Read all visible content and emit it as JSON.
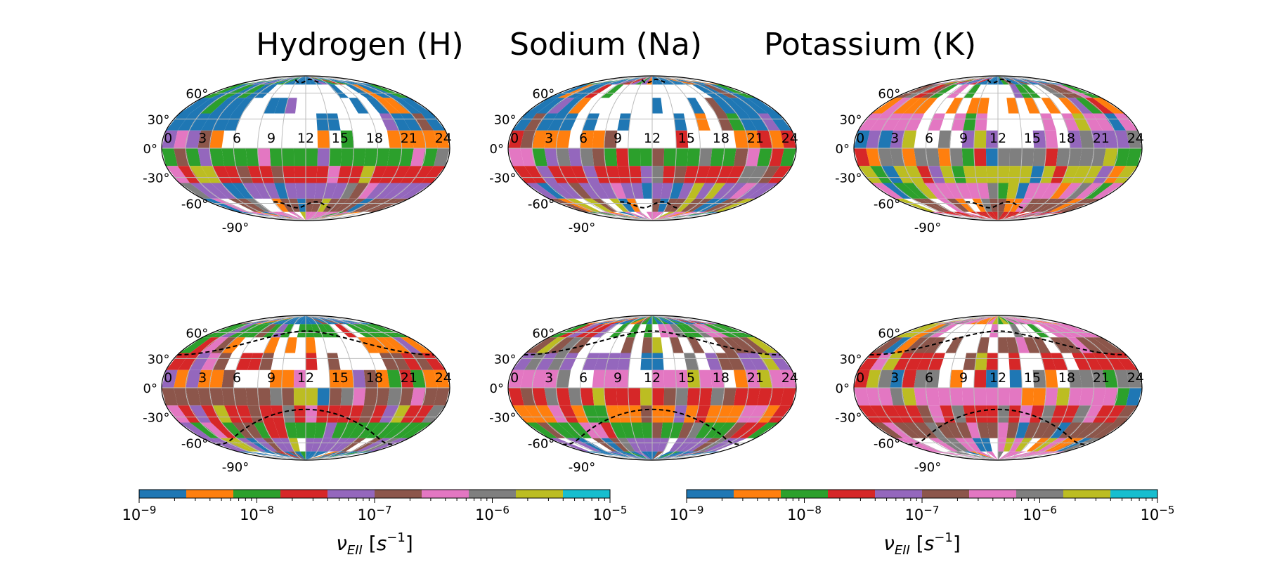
{
  "titles": [
    "Hydrogen (H)",
    "Sodium (Na)",
    "Potassium (K)"
  ],
  "chart_data": [
    {
      "type": "heatmap",
      "title": "Hydrogen (H)",
      "projection": "mollweide",
      "x_tick_labels": [
        "0",
        "3",
        "6",
        "9",
        "12",
        "15",
        "18",
        "21",
        "24"
      ],
      "y_tick_labels": [
        "60°",
        "30°",
        "0°",
        "-30°",
        "-60°",
        "-90°"
      ],
      "boundary_lines": "dashed black, near poles",
      "seed": 11,
      "fill": 0.42,
      "band": [
        0,
        0,
        0,
        0,
        1,
        2,
        3,
        4,
        5,
        6
      ]
    },
    {
      "type": "heatmap",
      "title": "Sodium (Na)",
      "projection": "mollweide",
      "x_tick_labels": [
        "0",
        "3",
        "6",
        "9",
        "12",
        "15",
        "18",
        "21",
        "24"
      ],
      "y_tick_labels": [
        "60°",
        "30°",
        "0°",
        "-30°",
        "-60°",
        "-90°"
      ],
      "boundary_lines": "dashed black, near poles",
      "seed": 23,
      "fill": 0.4,
      "band": [
        0,
        0,
        0,
        0,
        1,
        2,
        3,
        4,
        5,
        6
      ]
    },
    {
      "type": "heatmap",
      "title": "Potassium (K)",
      "projection": "mollweide",
      "x_tick_labels": [
        "0",
        "3",
        "6",
        "9",
        "12",
        "15",
        "18",
        "21",
        "24"
      ],
      "y_tick_labels": [
        "60°",
        "30°",
        "0°",
        "-30°",
        "-60°",
        "-90°"
      ],
      "boundary_lines": "dashed black, near poles",
      "seed": 37,
      "fill": 0.38,
      "band": [
        0,
        2,
        1,
        6,
        4,
        7,
        8,
        6,
        5,
        3
      ]
    },
    {
      "type": "heatmap",
      "projection": "mollweide",
      "x_tick_labels": [
        "0",
        "3",
        "6",
        "9",
        "12",
        "15",
        "18",
        "21",
        "24"
      ],
      "y_tick_labels": [
        "60°",
        "30°",
        "0°",
        "-30°",
        "-60°",
        "-90°"
      ],
      "boundary_lines": "dashed black, sinuous at ~±45°",
      "seed": 41,
      "fill": 0.3,
      "band": [
        0,
        2,
        1,
        3,
        1,
        5,
        3,
        2,
        4,
        0
      ]
    },
    {
      "type": "heatmap",
      "projection": "mollweide",
      "x_tick_labels": [
        "0",
        "3",
        "6",
        "9",
        "12",
        "15",
        "18",
        "21",
        "24"
      ],
      "y_tick_labels": [
        "60°",
        "30°",
        "0°",
        "-30°",
        "-60°",
        "-90°"
      ],
      "boundary_lines": "dashed black, sinuous at ~±45°",
      "seed": 53,
      "fill": 0.28,
      "band": [
        0,
        2,
        5,
        4,
        6,
        3,
        1,
        2,
        4,
        0
      ]
    },
    {
      "type": "heatmap",
      "projection": "mollweide",
      "x_tick_labels": [
        "0",
        "3",
        "6",
        "9",
        "12",
        "15",
        "18",
        "21",
        "24"
      ],
      "y_tick_labels": [
        "60°",
        "30°",
        "0°",
        "-30°",
        "-60°",
        "-90°"
      ],
      "boundary_lines": "dashed black, sinuous at ~±45°",
      "seed": 67,
      "fill": 0.25,
      "band": [
        6,
        6,
        5,
        3,
        7,
        6,
        3,
        5,
        6,
        6
      ]
    }
  ],
  "colorbars": [
    {
      "ticks": [
        "10",
        "10",
        "10",
        "10",
        "10"
      ],
      "exps": [
        "−9",
        "−8",
        "−7",
        "−6",
        "−5"
      ],
      "label": "ν",
      "label_sub": "EII",
      "label_unit_open": " [",
      "label_s": "s",
      "label_s_exp": "−1",
      "label_unit_close": "]"
    },
    {
      "ticks": [
        "10",
        "10",
        "10",
        "10",
        "10"
      ],
      "exps": [
        "−9",
        "−8",
        "−7",
        "−6",
        "−5"
      ],
      "label": "ν",
      "label_sub": "EII",
      "label_unit_open": " [",
      "label_s": "s",
      "label_s_exp": "−1",
      "label_unit_close": "]"
    }
  ],
  "colors": [
    "#1f77b4",
    "#ff7f0e",
    "#2ca02c",
    "#d62728",
    "#9467bd",
    "#8c564b",
    "#e377c2",
    "#7f7f7f",
    "#bcbd22",
    "#17becf"
  ]
}
